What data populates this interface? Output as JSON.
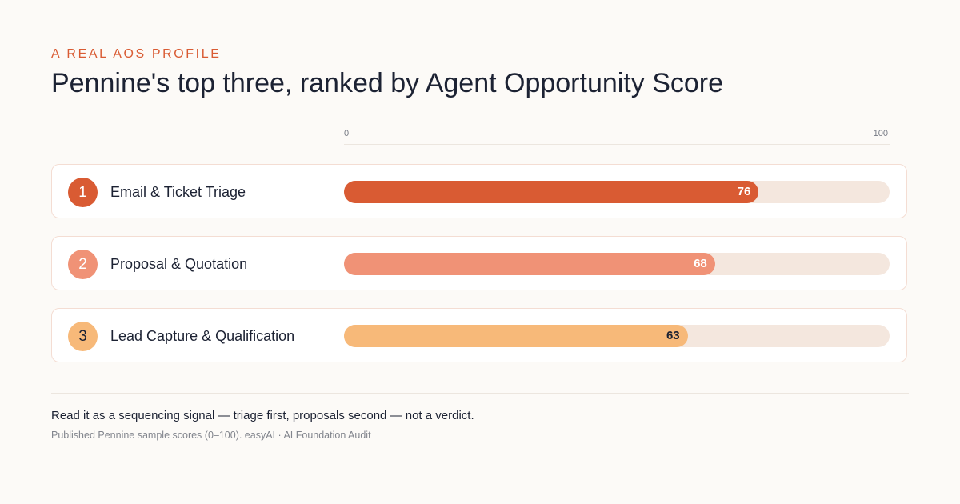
{
  "eyebrow": "A REAL AOS PROFILE",
  "title": "Pennine's top three, ranked by Agent Opportunity Score",
  "axis": {
    "min_label": "0",
    "max_label": "100"
  },
  "colors": {
    "rank_1": "#d95b33",
    "rank_2": "#f09276",
    "rank_3": "#f7b979",
    "track": "#f4e7de"
  },
  "chart_data": {
    "type": "bar",
    "orientation": "horizontal",
    "title": "Pennine's top three, ranked by Agent Opportunity Score",
    "xlim": [
      0,
      100
    ],
    "categories": [
      "Email & Ticket Triage",
      "Proposal & Quotation",
      "Lead Capture & Qualification"
    ],
    "ranks": [
      "1",
      "2",
      "3"
    ],
    "values": [
      76,
      68,
      63
    ],
    "grid": false,
    "data_labels": true
  },
  "note": "Read it as a sequencing signal — triage first, proposals second — not a verdict.",
  "source": "Published Pennine sample scores (0–100). easyAI · AI Foundation Audit"
}
